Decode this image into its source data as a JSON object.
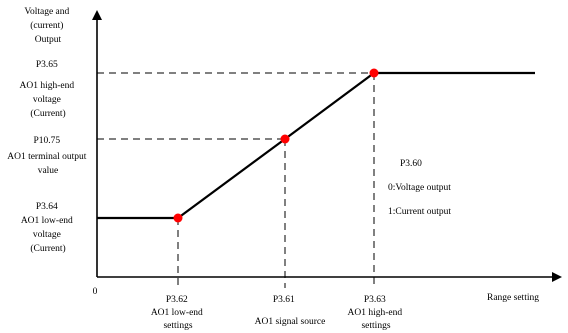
{
  "chart_data": {
    "type": "line",
    "title": "",
    "ylabel": [
      "Voltage and",
      "(current)",
      "Output"
    ],
    "xlabel": "Range setting",
    "origin_label": "0",
    "x_ticks": [
      {
        "code": "P3.62",
        "text": [
          "AO1 low-end",
          "settings"
        ]
      },
      {
        "code": "P3.61",
        "text": [
          "AO1 signal source"
        ]
      },
      {
        "code": "P3.63",
        "text": [
          "AO1 high-end",
          "settings"
        ]
      }
    ],
    "y_ticks": [
      {
        "code": "P3.65",
        "text": [
          "AO1 high-end",
          "voltage",
          "(Current)"
        ]
      },
      {
        "code": "P10.75",
        "text": [
          "AO1 terminal output",
          "value"
        ]
      },
      {
        "code": "P3.64",
        "text": [
          "AO1 low-end",
          "voltage",
          "(Current)"
        ]
      }
    ],
    "series": [
      {
        "x": [
          "start",
          "P3.62",
          "P3.61",
          "P3.63",
          "end"
        ],
        "y": [
          "P3.64",
          "P3.64",
          "P10.75",
          "P3.65",
          "P3.65"
        ]
      }
    ],
    "annotation": {
      "code": "P3.60",
      "lines": [
        "0:Voltage output",
        "1:Current output"
      ]
    },
    "colors": {
      "line": "#000000",
      "marker": "#ff0000",
      "dash": "#000000"
    }
  }
}
